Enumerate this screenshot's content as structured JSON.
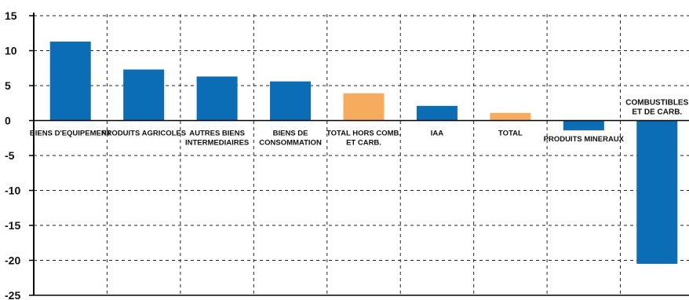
{
  "chart_data": {
    "type": "bar",
    "categories": [
      [
        "BIENS D'EQUIPEMENT"
      ],
      [
        "PRODUITS AGRICOLES"
      ],
      [
        "AUTRES BIENS",
        "INTERMEDIAIRES"
      ],
      [
        "BIENS DE",
        "CONSOMMATION"
      ],
      [
        "TOTAL HORS COMB.",
        "ET CARB."
      ],
      [
        "IAA"
      ],
      [
        "TOTAL"
      ],
      [
        "PRODUITS MINERAUX"
      ],
      [
        "COMBUSTIBLES",
        "ET DE CARB."
      ]
    ],
    "values": [
      11.3,
      7.3,
      6.3,
      5.6,
      3.9,
      2.1,
      1.1,
      -1.4,
      -20.5
    ],
    "colors": [
      "#0a6db5",
      "#0a6db5",
      "#0a6db5",
      "#0a6db5",
      "#f6ac5c",
      "#0a6db5",
      "#f6ac5c",
      "#0a6db5",
      "#0a6db5"
    ],
    "ylim": [
      -25,
      15
    ],
    "yticks": [
      15,
      10,
      5,
      0,
      -5,
      -10,
      -15,
      -20,
      -25
    ],
    "grid": true,
    "title": "",
    "xlabel": "",
    "ylabel": ""
  }
}
